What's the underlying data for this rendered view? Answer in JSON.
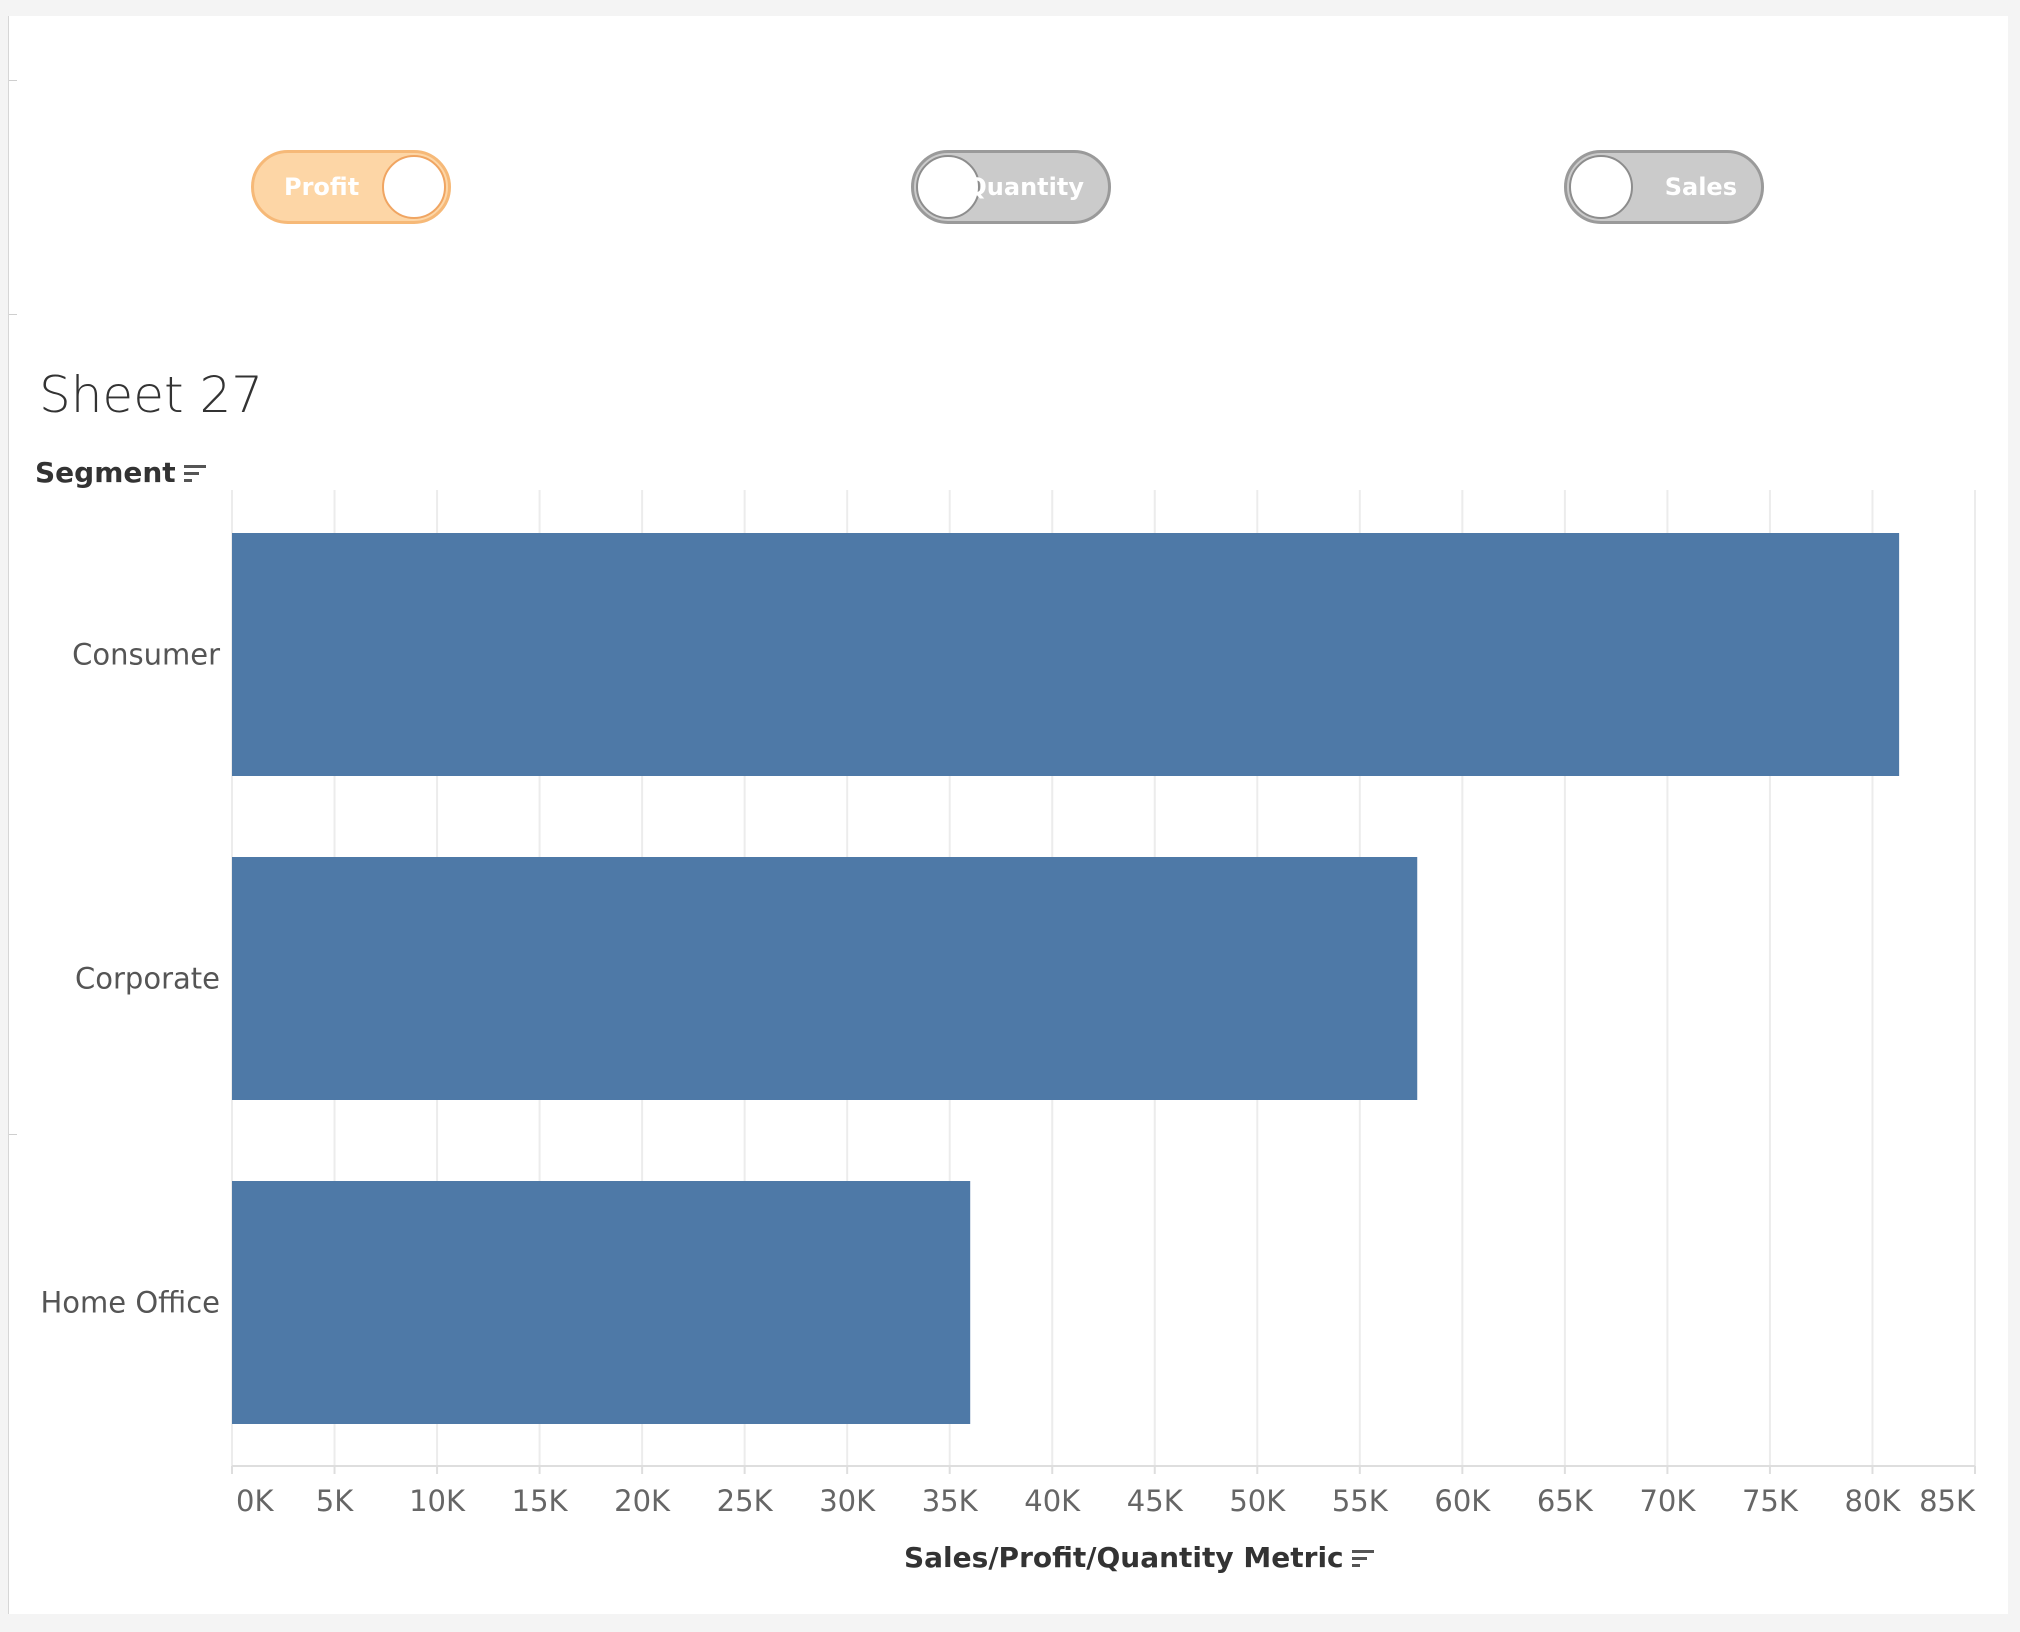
{
  "toggles": [
    {
      "label": "Profit",
      "state": "on",
      "color": "#fdd6a6"
    },
    {
      "label": "Quantity",
      "state": "off",
      "color": "#cbcbcb"
    },
    {
      "label": "Sales",
      "state": "off",
      "color": "#cbcbcb"
    }
  ],
  "sheet": {
    "title": "Sheet 27"
  },
  "chart_data": {
    "type": "bar",
    "orientation": "horizontal",
    "title": "Sheet 27",
    "ylabel": "Segment",
    "xlabel": "Sales/Profit/Quantity Metric",
    "categories": [
      "Consumer",
      "Corporate",
      "Home Office"
    ],
    "values": [
      81300,
      57800,
      36000
    ],
    "xlim": [
      0,
      85000
    ],
    "xticks": [
      0,
      5000,
      10000,
      15000,
      20000,
      25000,
      30000,
      35000,
      40000,
      45000,
      50000,
      55000,
      60000,
      65000,
      70000,
      75000,
      80000,
      85000
    ],
    "xtick_labels": [
      "0K",
      "5K",
      "10K",
      "15K",
      "20K",
      "25K",
      "30K",
      "35K",
      "40K",
      "45K",
      "50K",
      "55K",
      "60K",
      "65K",
      "70K",
      "75K",
      "80K",
      "85K"
    ],
    "bar_color": "#4e79a7",
    "grid": true
  }
}
